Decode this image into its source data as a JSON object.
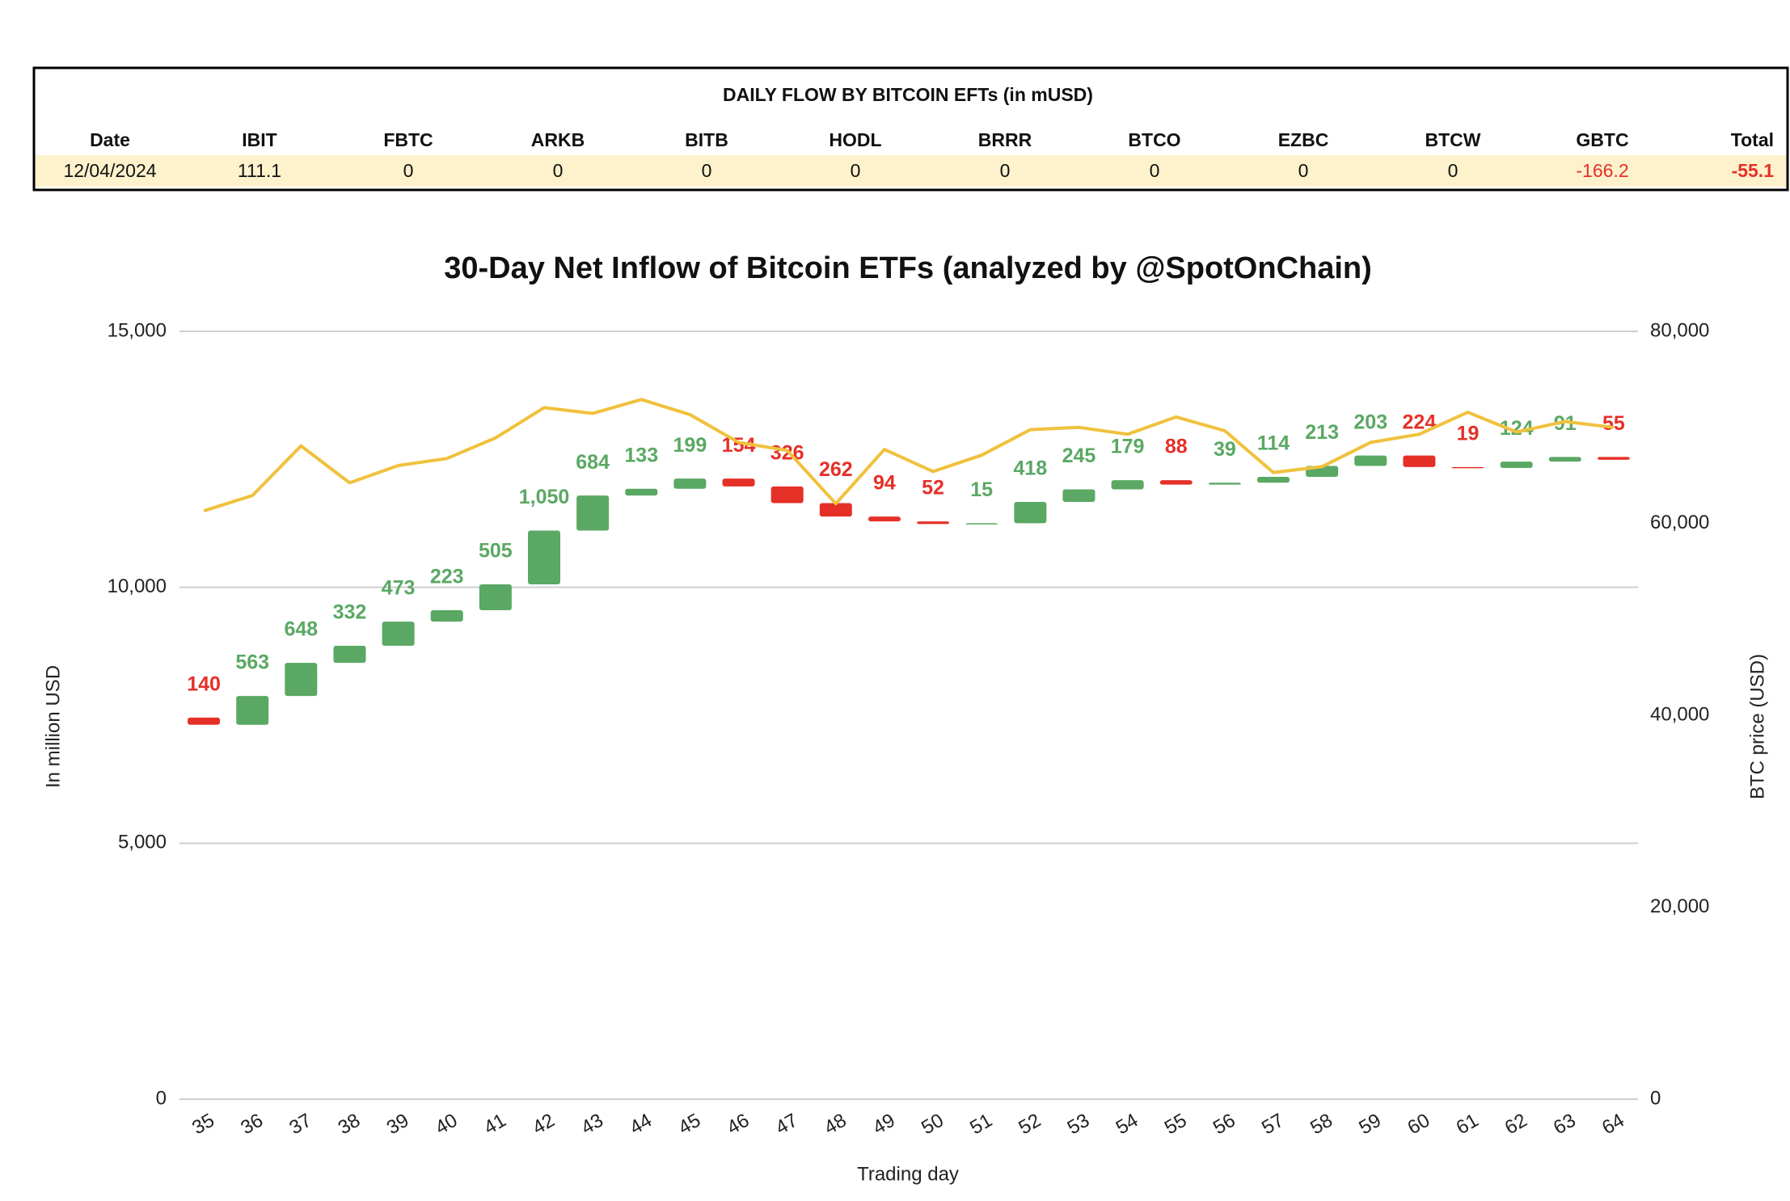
{
  "table": {
    "title": "DAILY FLOW BY BITCOIN EFTs (in mUSD)",
    "headers": [
      "Date",
      "IBIT",
      "FBTC",
      "ARKB",
      "BITB",
      "HODL",
      "BRRR",
      "BTCO",
      "EZBC",
      "BTCW",
      "GBTC",
      "Total"
    ],
    "rows": [
      [
        "12/04/2024",
        111.1,
        0,
        0,
        0,
        0,
        0,
        0,
        0,
        0,
        -166.2,
        -55.1
      ]
    ]
  },
  "chart_data": {
    "type": "waterfall",
    "title": "30-Day Net Inflow of Bitcoin ETFs (analyzed by @SpotOnChain)",
    "xlabel": "Trading day",
    "ylabel": "In million USD",
    "y2label": "BTC price (USD)",
    "categories": [
      "35",
      "36",
      "37",
      "38",
      "39",
      "40",
      "41",
      "42",
      "43",
      "44",
      "45",
      "46",
      "47",
      "48",
      "49",
      "50",
      "51",
      "52",
      "53",
      "54",
      "55",
      "56",
      "57",
      "58",
      "59",
      "60",
      "61",
      "62",
      "63",
      "64"
    ],
    "start_value": 7454,
    "values": [
      -140,
      563,
      648,
      332,
      473,
      223,
      505,
      1050,
      684,
      133,
      199,
      -154,
      -326,
      -262,
      -94,
      -52,
      15,
      418,
      245,
      179,
      -88,
      39,
      114,
      213,
      203,
      -224,
      -19,
      124,
      91,
      -55
    ],
    "value_labels": [
      "140",
      "563",
      "648",
      "332",
      "473",
      "223",
      "505",
      "1,050",
      "684",
      "133",
      "199",
      "154",
      "326",
      "262",
      "94",
      "52",
      "15",
      "418",
      "245",
      "179",
      "88",
      "39",
      "114",
      "213",
      "203",
      "224",
      "19",
      "124",
      "91",
      "55"
    ],
    "colors": {
      "increase": "#5aa864",
      "decrease": "#e53028"
    },
    "line": {
      "type": "line",
      "axis": "y2",
      "color": "#f0c13c",
      "values": [
        61300,
        62900,
        68070,
        64220,
        66020,
        66750,
        68900,
        72050,
        71450,
        72900,
        71330,
        68430,
        67600,
        62050,
        67700,
        65400,
        67100,
        69760,
        70000,
        69280,
        71080,
        69640,
        65300,
        65900,
        68430,
        69280,
        71570,
        69520,
        70600,
        70000
      ]
    },
    "ylim": [
      0,
      15000
    ],
    "yticks": [
      0,
      {
        "value": 5000,
        "label": "5,000"
      },
      {
        "value": 10000,
        "label": "10,000"
      },
      {
        "value": 15000,
        "label": "15,000"
      }
    ],
    "y2lim": [
      0,
      80000
    ],
    "y2ticks": [
      0,
      {
        "value": 20000,
        "label": "20,000"
      },
      {
        "value": 40000,
        "label": "40,000"
      },
      {
        "value": 60000,
        "label": "60,000"
      },
      {
        "value": 80000,
        "label": "80,000"
      }
    ],
    "grid": true
  }
}
